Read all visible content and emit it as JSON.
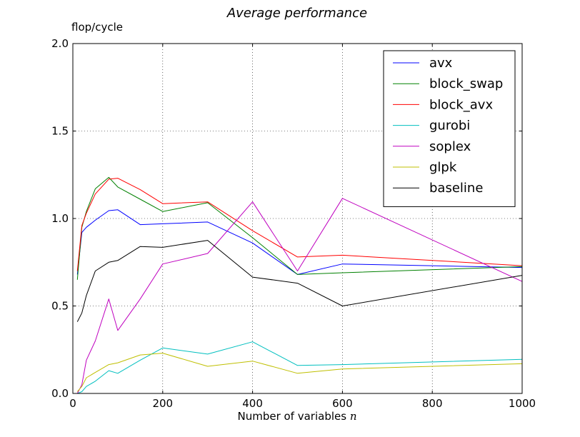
{
  "chart_data": {
    "type": "line",
    "title": "Average performance",
    "ylabel": "flop/cycle",
    "xlabel": "Number of variables",
    "xlabel_var": "n",
    "xlim": [
      0,
      1000
    ],
    "ylim": [
      0,
      2.0
    ],
    "xticks": [
      0,
      200,
      400,
      600,
      800,
      1000
    ],
    "yticks": [
      0.0,
      0.5,
      1.0,
      1.5,
      2.0
    ],
    "ytick_labels": [
      "0.0",
      "0.5",
      "1.0",
      "1.5",
      "2.0"
    ],
    "grid": true,
    "legend_position": "top-right",
    "series": [
      {
        "name": "avx",
        "color": "#0000ff",
        "x": [
          10,
          20,
          30,
          50,
          80,
          100,
          150,
          200,
          300,
          400,
          500,
          600,
          1000
        ],
        "y": [
          0.68,
          0.92,
          0.95,
          0.99,
          1.045,
          1.05,
          0.965,
          0.97,
          0.98,
          0.86,
          0.68,
          0.74,
          0.72
        ]
      },
      {
        "name": "block_swap",
        "color": "#008000",
        "x": [
          10,
          20,
          30,
          50,
          80,
          100,
          150,
          200,
          300,
          400,
          500,
          600,
          1000
        ],
        "y": [
          0.65,
          0.95,
          1.04,
          1.17,
          1.235,
          1.18,
          1.11,
          1.04,
          1.09,
          0.89,
          0.68,
          0.69,
          0.725
        ]
      },
      {
        "name": "block_avx",
        "color": "#ff0000",
        "x": [
          10,
          20,
          30,
          50,
          80,
          100,
          150,
          200,
          300,
          400,
          500,
          600,
          1000
        ],
        "y": [
          0.7,
          0.96,
          1.03,
          1.14,
          1.225,
          1.23,
          1.165,
          1.085,
          1.095,
          0.93,
          0.78,
          0.79,
          0.73
        ]
      },
      {
        "name": "gurobi",
        "color": "#00bfbf",
        "x": [
          10,
          20,
          30,
          50,
          80,
          100,
          150,
          200,
          300,
          400,
          500,
          600,
          1000
        ],
        "y": [
          0.0,
          0.01,
          0.04,
          0.07,
          0.13,
          0.115,
          0.19,
          0.26,
          0.225,
          0.295,
          0.16,
          0.165,
          0.195
        ]
      },
      {
        "name": "soplex",
        "color": "#bf00bf",
        "x": [
          10,
          20,
          30,
          50,
          80,
          100,
          150,
          200,
          300,
          400,
          500,
          600,
          1000
        ],
        "y": [
          0.0,
          0.05,
          0.19,
          0.3,
          0.54,
          0.36,
          0.54,
          0.74,
          0.8,
          1.095,
          0.7,
          1.115,
          0.64
        ]
      },
      {
        "name": "glpk",
        "color": "#bfbf00",
        "x": [
          10,
          20,
          30,
          50,
          80,
          100,
          150,
          200,
          300,
          400,
          500,
          600,
          1000
        ],
        "y": [
          0.01,
          0.04,
          0.09,
          0.12,
          0.165,
          0.175,
          0.22,
          0.23,
          0.155,
          0.185,
          0.115,
          0.14,
          0.17
        ]
      },
      {
        "name": "baseline",
        "color": "#000000",
        "x": [
          10,
          20,
          30,
          50,
          80,
          100,
          150,
          200,
          300,
          400,
          500,
          600,
          1000
        ],
        "y": [
          0.41,
          0.46,
          0.56,
          0.7,
          0.75,
          0.76,
          0.84,
          0.835,
          0.875,
          0.665,
          0.63,
          0.5,
          0.675
        ]
      }
    ]
  }
}
